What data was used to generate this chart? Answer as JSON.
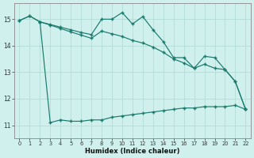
{
  "xlabel": "Humidex (Indice chaleur)",
  "background_color": "#cff0ec",
  "line_color": "#1a7a6e",
  "grid_color": "#b0d8d4",
  "xlim": [
    -0.5,
    22.5
  ],
  "ylim": [
    10.5,
    15.6
  ],
  "yticks": [
    11,
    12,
    13,
    14,
    15
  ],
  "xticks": [
    0,
    1,
    2,
    3,
    4,
    5,
    6,
    7,
    8,
    9,
    10,
    11,
    12,
    13,
    14,
    15,
    16,
    17,
    18,
    19,
    20,
    21,
    22
  ],
  "curve_upper_x": [
    0,
    1,
    2,
    3,
    4,
    5,
    6,
    7,
    8,
    9,
    10,
    11,
    12,
    13,
    14,
    15,
    16,
    17,
    18,
    19,
    20,
    21,
    22
  ],
  "curve_upper_y": [
    14.95,
    15.12,
    14.9,
    14.8,
    14.7,
    14.6,
    14.5,
    14.42,
    15.0,
    15.0,
    15.25,
    14.82,
    15.1,
    14.6,
    14.15,
    13.55,
    13.55,
    13.15,
    13.6,
    13.55,
    13.1,
    12.65,
    11.6
  ],
  "curve_lower_x": [
    0,
    1,
    2,
    3,
    4,
    5,
    6,
    7,
    8,
    9,
    10,
    11,
    12,
    13,
    14,
    15,
    16,
    17,
    18,
    19,
    20,
    21,
    22
  ],
  "curve_lower_y": [
    14.95,
    15.12,
    14.9,
    11.1,
    11.2,
    11.15,
    11.15,
    11.2,
    11.2,
    11.3,
    11.35,
    11.4,
    11.45,
    11.5,
    11.55,
    11.6,
    11.65,
    11.65,
    11.7,
    11.7,
    11.7,
    11.75,
    11.6
  ],
  "curve_mid_x": [
    2,
    3,
    4,
    5,
    6,
    7,
    8,
    9,
    10,
    11,
    12,
    13,
    14,
    15,
    16,
    17,
    18,
    19,
    20,
    21,
    22
  ],
  "curve_mid_y": [
    14.9,
    14.78,
    14.65,
    14.52,
    14.4,
    14.28,
    14.55,
    14.45,
    14.35,
    14.2,
    14.1,
    13.95,
    13.75,
    13.5,
    13.35,
    13.15,
    13.3,
    13.15,
    13.1,
    12.65,
    11.6
  ]
}
